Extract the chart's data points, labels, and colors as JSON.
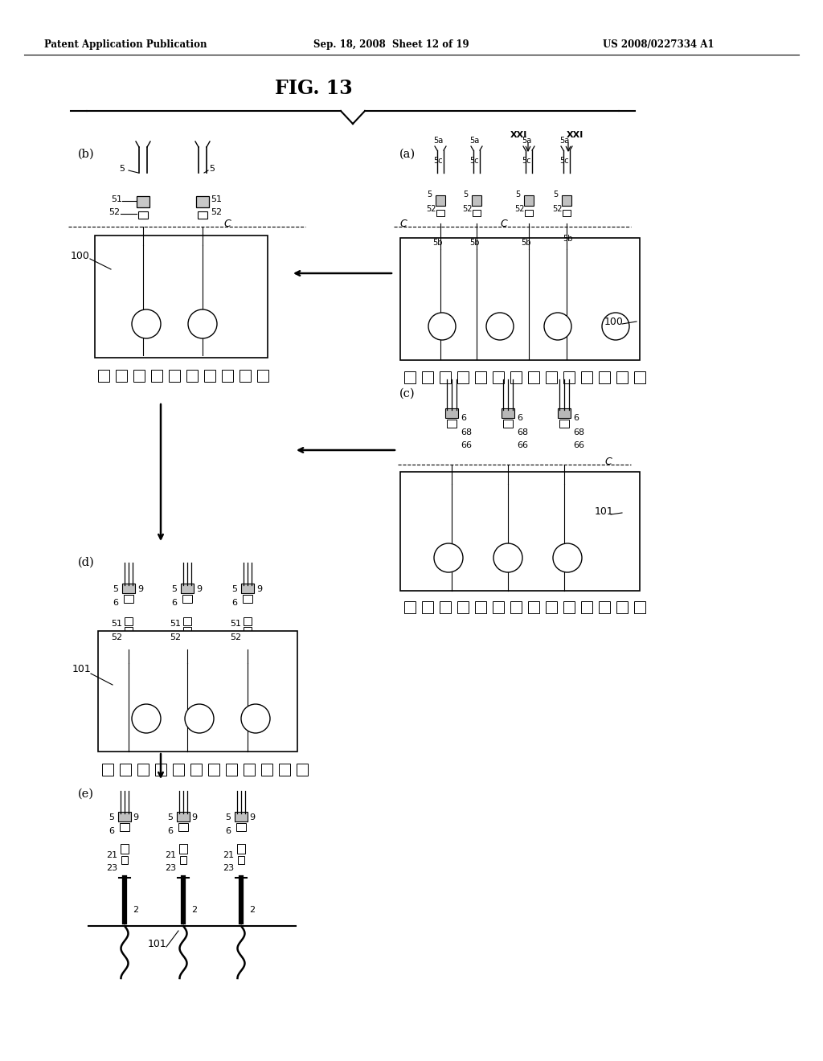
{
  "header_left": "Patent Application Publication",
  "header_center": "Sep. 18, 2008  Sheet 12 of 19",
  "header_right": "US 2008/0227334 A1",
  "title": "FIG. 13",
  "bg_color": "#ffffff",
  "lc": "#000000",
  "tc": "#000000",
  "fig_width": 10.24,
  "fig_height": 13.2,
  "dpi": 100
}
